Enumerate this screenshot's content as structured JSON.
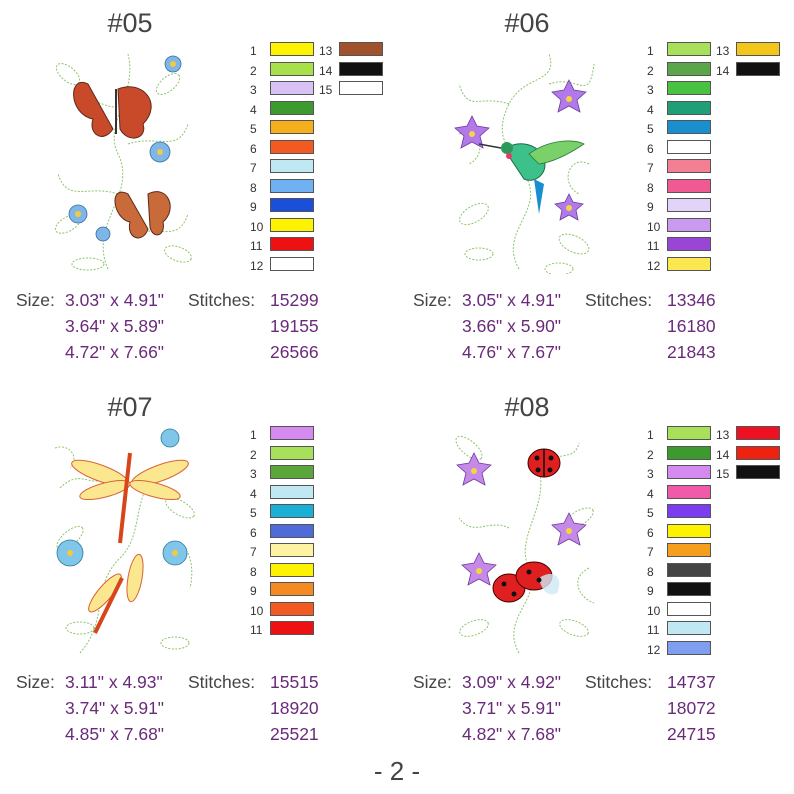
{
  "page_number": "- 2 -",
  "size_label": "Size:",
  "stitches_label": "Stitches:",
  "designs": [
    {
      "title": "#05",
      "art_icon": "butterfly-flowers-embroidery",
      "colors": [
        {
          "n": "1",
          "hex": "#fdf200"
        },
        {
          "n": "2",
          "hex": "#a8e04a"
        },
        {
          "n": "3",
          "hex": "#d7c1f5"
        },
        {
          "n": "4",
          "hex": "#3d9a2f"
        },
        {
          "n": "5",
          "hex": "#f5ae1c"
        },
        {
          "n": "6",
          "hex": "#f25a22"
        },
        {
          "n": "7",
          "hex": "#bfe8f2"
        },
        {
          "n": "8",
          "hex": "#6fb1f2"
        },
        {
          "n": "9",
          "hex": "#1a4fd9"
        },
        {
          "n": "10",
          "hex": "#fdf200"
        },
        {
          "n": "11",
          "hex": "#ee1111"
        },
        {
          "n": "12",
          "hex": "#ffffff"
        },
        {
          "n": "13",
          "hex": "#a0522d"
        },
        {
          "n": "14",
          "hex": "#111111"
        },
        {
          "n": "15",
          "hex": "#ffffff"
        }
      ],
      "sizes": [
        "3.03\" x 4.91\"",
        "3.64\" x 5.89\"",
        "4.72\" x 7.66\""
      ],
      "stitches": [
        "15299",
        "19155",
        "26566"
      ]
    },
    {
      "title": "#06",
      "art_icon": "hummingbird-flowers-embroidery",
      "colors": [
        {
          "n": "1",
          "hex": "#a9e05a"
        },
        {
          "n": "2",
          "hex": "#5aa64a"
        },
        {
          "n": "3",
          "hex": "#49c241"
        },
        {
          "n": "4",
          "hex": "#1f9e78"
        },
        {
          "n": "5",
          "hex": "#1a8fd0"
        },
        {
          "n": "6",
          "hex": "#ffffff"
        },
        {
          "n": "7",
          "hex": "#f27f93"
        },
        {
          "n": "8",
          "hex": "#f05a93"
        },
        {
          "n": "9",
          "hex": "#e2d3f8"
        },
        {
          "n": "10",
          "hex": "#c99af0"
        },
        {
          "n": "11",
          "hex": "#9b45d6"
        },
        {
          "n": "12",
          "hex": "#fbe74f"
        },
        {
          "n": "13",
          "hex": "#f2c61a"
        },
        {
          "n": "14",
          "hex": "#111111"
        }
      ],
      "sizes": [
        "3.05\" x 4.91\"",
        "3.66\" x 5.90\"",
        "4.76\" x 7.67\""
      ],
      "stitches": [
        "13346",
        "16180",
        "21843"
      ]
    },
    {
      "title": "#07",
      "art_icon": "dragonfly-flowers-embroidery",
      "colors": [
        {
          "n": "1",
          "hex": "#d58af0"
        },
        {
          "n": "2",
          "hex": "#a9e05a"
        },
        {
          "n": "3",
          "hex": "#5aa63a"
        },
        {
          "n": "4",
          "hex": "#bfe8f2"
        },
        {
          "n": "5",
          "hex": "#1ab0d6"
        },
        {
          "n": "6",
          "hex": "#4f6ad9"
        },
        {
          "n": "7",
          "hex": "#fdf3a0"
        },
        {
          "n": "8",
          "hex": "#fdf200"
        },
        {
          "n": "9",
          "hex": "#f58a22"
        },
        {
          "n": "10",
          "hex": "#f25a22"
        },
        {
          "n": "11",
          "hex": "#ee1111"
        }
      ],
      "sizes": [
        "3.11\" x 4.93\"",
        "3.74\" x 5.91\"",
        "4.85\" x 7.68\""
      ],
      "stitches": [
        "15515",
        "18920",
        "25521"
      ]
    },
    {
      "title": "#08",
      "art_icon": "ladybug-flowers-embroidery",
      "colors": [
        {
          "n": "1",
          "hex": "#a9e05a"
        },
        {
          "n": "2",
          "hex": "#3d9a2f"
        },
        {
          "n": "3",
          "hex": "#d58af0"
        },
        {
          "n": "4",
          "hex": "#f05aa8"
        },
        {
          "n": "5",
          "hex": "#7a3ef0"
        },
        {
          "n": "6",
          "hex": "#fdf200"
        },
        {
          "n": "7",
          "hex": "#f5a01c"
        },
        {
          "n": "8",
          "hex": "#444444"
        },
        {
          "n": "9",
          "hex": "#111111"
        },
        {
          "n": "10",
          "hex": "#ffffff"
        },
        {
          "n": "11",
          "hex": "#bfe8f2"
        },
        {
          "n": "12",
          "hex": "#7f9ef0"
        },
        {
          "n": "13",
          "hex": "#ee1122"
        },
        {
          "n": "14",
          "hex": "#ee2211"
        },
        {
          "n": "15",
          "hex": "#111111"
        }
      ],
      "sizes": [
        "3.09\" x 4.92\"",
        "3.71\" x 5.91\"",
        "4.82\" x 7.68\""
      ],
      "stitches": [
        "14737",
        "18072",
        "24715"
      ]
    }
  ]
}
